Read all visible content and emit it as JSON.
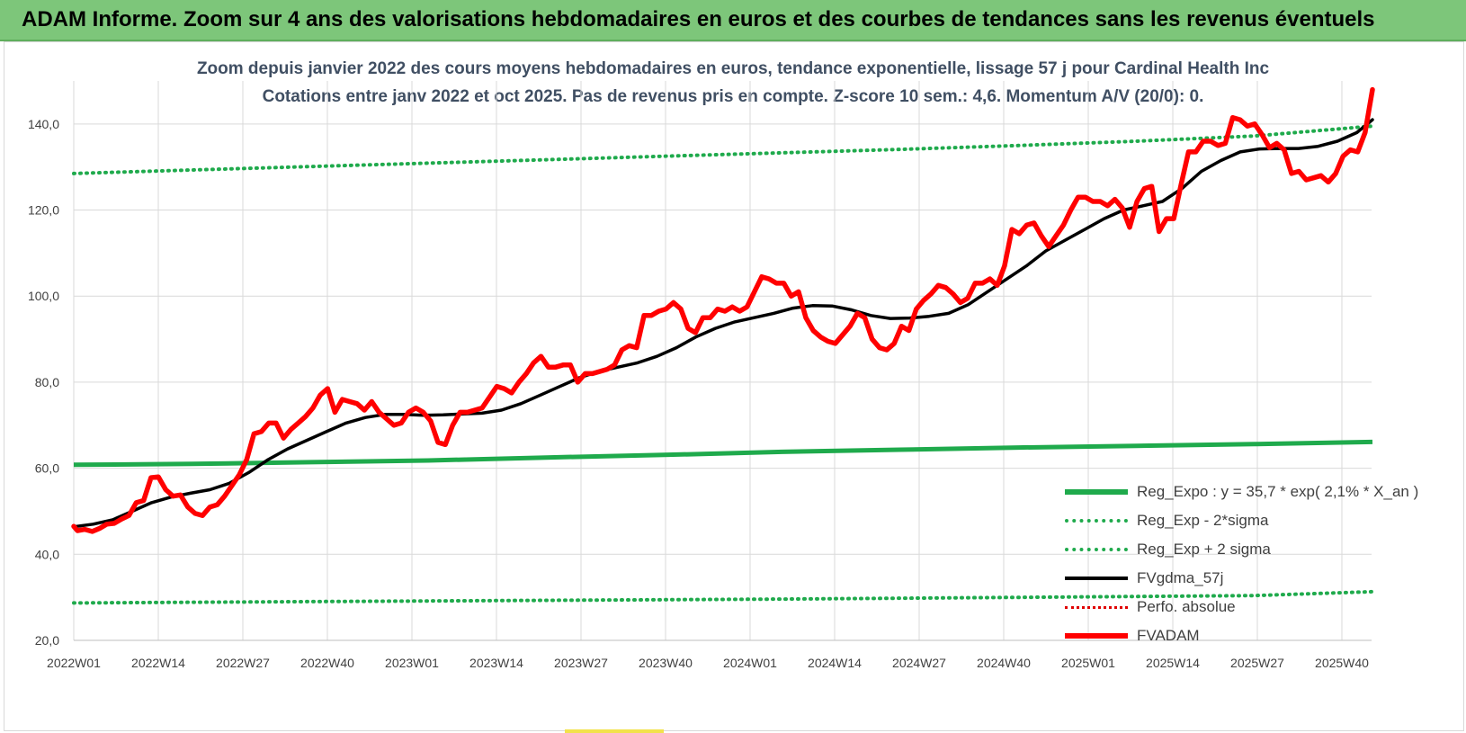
{
  "header": {
    "title": "ADAM Informe. Zoom sur 4 ans des valorisations hebdomadaires en euros et des courbes de tendances sans les revenus éventuels"
  },
  "chart_data": {
    "type": "line",
    "title": "Zoom depuis janvier 2022 des cours moyens hebdomadaires en euros, tendance exponentielle, lissage 57 j pour Cardinal Health Inc",
    "subtitle": "Cotations entre janv 2022 et oct 2025. Pas de revenus pris en compte. Z-score 10 sem.: 4,6. Momentum A/V (20/0): 0.",
    "xlabel": "",
    "ylabel": "",
    "ylim": [
      20,
      150
    ],
    "x_ticks": [
      "2022W01",
      "2022W14",
      "2022W27",
      "2022W40",
      "2023W01",
      "2023W14",
      "2023W27",
      "2023W40",
      "2024W01",
      "2024W14",
      "2024W27",
      "2024W40",
      "2025W01",
      "2025W14",
      "2025W27",
      "2025W40"
    ],
    "y_ticks": [
      "20,0",
      "40,0",
      "60,0",
      "80,0",
      "100,0",
      "120,0",
      "140,0"
    ],
    "week_range": [
      0,
      197
    ],
    "grid": true,
    "legend_position": "bottom-right",
    "series": [
      {
        "name": "Reg_Expo : y = 35,7 * exp( 2,1% * X_an )",
        "style": "solid",
        "color": "#1faa4c",
        "points": [
          [
            0,
            60.8
          ],
          [
            26,
            61.0
          ],
          [
            52,
            61.4
          ],
          [
            78,
            61.8
          ],
          [
            104,
            62.5
          ],
          [
            130,
            63.1
          ],
          [
            156,
            63.8
          ],
          [
            182,
            64.3
          ],
          [
            208,
            64.8
          ],
          [
            234,
            65.2
          ],
          [
            260,
            65.6
          ],
          [
            286,
            66.1
          ]
        ]
      },
      {
        "name": "Reg_Exp - 2*sigma",
        "style": "dotted",
        "color": "#1faa4c",
        "points": [
          [
            0,
            28.7
          ],
          [
            52,
            29.0
          ],
          [
            104,
            29.3
          ],
          [
            156,
            29.6
          ],
          [
            208,
            30.0
          ],
          [
            260,
            30.4
          ],
          [
            286,
            31.3
          ]
        ]
      },
      {
        "name": "Reg_Exp + 2 sigma",
        "style": "dotted",
        "color": "#1faa4c",
        "points": [
          [
            0,
            128.5
          ],
          [
            26,
            129.3
          ],
          [
            52,
            130.1
          ],
          [
            78,
            130.9
          ],
          [
            104,
            131.7
          ],
          [
            130,
            132.5
          ],
          [
            156,
            133.3
          ],
          [
            182,
            134.1
          ],
          [
            208,
            135.0
          ],
          [
            234,
            136.0
          ],
          [
            260,
            137.2
          ],
          [
            286,
            139.5
          ]
        ]
      },
      {
        "name": "FVgdma_57j",
        "style": "solid",
        "color": "#000000",
        "points": [
          [
            0,
            46.4
          ],
          [
            5,
            47.0
          ],
          [
            10,
            48.0
          ],
          [
            15,
            50.0
          ],
          [
            20,
            52.0
          ],
          [
            25,
            53.3
          ],
          [
            30,
            54.2
          ],
          [
            35,
            55.0
          ],
          [
            40,
            56.5
          ],
          [
            45,
            59.0
          ],
          [
            50,
            62.0
          ],
          [
            55,
            64.5
          ],
          [
            60,
            66.5
          ],
          [
            65,
            68.5
          ],
          [
            70,
            70.5
          ],
          [
            75,
            71.8
          ],
          [
            80,
            72.5
          ],
          [
            85,
            72.5
          ],
          [
            90,
            72.3
          ],
          [
            95,
            72.4
          ],
          [
            100,
            72.6
          ],
          [
            105,
            72.8
          ],
          [
            110,
            73.5
          ],
          [
            115,
            75.0
          ],
          [
            120,
            77.0
          ],
          [
            125,
            79.0
          ],
          [
            130,
            81.0
          ],
          [
            135,
            82.5
          ],
          [
            140,
            83.5
          ],
          [
            145,
            84.5
          ],
          [
            150,
            86.0
          ],
          [
            155,
            88.0
          ],
          [
            160,
            90.5
          ],
          [
            165,
            92.5
          ],
          [
            170,
            94.0
          ],
          [
            175,
            95.0
          ],
          [
            180,
            96.0
          ],
          [
            185,
            97.2
          ],
          [
            190,
            97.8
          ],
          [
            195,
            97.7
          ],
          [
            200,
            96.8
          ],
          [
            205,
            95.5
          ],
          [
            210,
            94.8
          ],
          [
            215,
            94.9
          ],
          [
            220,
            95.3
          ],
          [
            225,
            96.0
          ],
          [
            230,
            98.0
          ],
          [
            235,
            101.0
          ],
          [
            240,
            104.0
          ],
          [
            245,
            107.0
          ],
          [
            250,
            110.5
          ],
          [
            255,
            113.0
          ],
          [
            260,
            115.5
          ],
          [
            265,
            118.0
          ],
          [
            270,
            120.0
          ],
          [
            275,
            121.0
          ],
          [
            280,
            122.0
          ],
          [
            285,
            125.0
          ],
          [
            290,
            129.0
          ],
          [
            295,
            131.5
          ],
          [
            300,
            133.5
          ],
          [
            305,
            134.2
          ],
          [
            310,
            134.3
          ],
          [
            315,
            134.3
          ],
          [
            320,
            134.8
          ],
          [
            325,
            136.0
          ],
          [
            330,
            138.0
          ],
          [
            334,
            141.0
          ]
        ]
      },
      {
        "name": "Perfo. absolue",
        "style": "dotted",
        "color": "#e00000",
        "points": []
      },
      {
        "name": "FVADAM",
        "style": "solid",
        "color": "#ff0000",
        "points": [
          [
            0,
            46.5
          ],
          [
            1,
            45.5
          ],
          [
            3,
            45.8
          ],
          [
            5,
            45.3
          ],
          [
            7,
            46.0
          ],
          [
            9,
            47.0
          ],
          [
            11,
            47.2
          ],
          [
            13,
            48.2
          ],
          [
            15,
            49.0
          ],
          [
            17,
            52.0
          ],
          [
            19,
            52.5
          ],
          [
            21,
            57.8
          ],
          [
            23,
            58.0
          ],
          [
            25,
            55.0
          ],
          [
            27,
            53.5
          ],
          [
            29,
            53.8
          ],
          [
            31,
            51.0
          ],
          [
            33,
            49.5
          ],
          [
            35,
            49.0
          ],
          [
            37,
            51.0
          ],
          [
            39,
            51.5
          ],
          [
            41,
            53.5
          ],
          [
            43,
            56.0
          ],
          [
            45,
            58.5
          ],
          [
            47,
            62.0
          ],
          [
            49,
            68.0
          ],
          [
            51,
            68.5
          ],
          [
            53,
            70.5
          ],
          [
            55,
            70.5
          ],
          [
            57,
            67.0
          ],
          [
            59,
            69.0
          ],
          [
            61,
            70.5
          ],
          [
            63,
            72.0
          ],
          [
            65,
            74.0
          ],
          [
            67,
            77.0
          ],
          [
            69,
            78.5
          ],
          [
            71,
            73.0
          ],
          [
            73,
            76.0
          ],
          [
            75,
            75.5
          ],
          [
            77,
            75.0
          ],
          [
            79,
            73.5
          ],
          [
            81,
            75.5
          ],
          [
            83,
            73.0
          ],
          [
            85,
            71.5
          ],
          [
            87,
            70.0
          ],
          [
            89,
            70.5
          ],
          [
            91,
            73.0
          ],
          [
            93,
            74.0
          ],
          [
            95,
            73.0
          ],
          [
            97,
            71.0
          ],
          [
            99,
            66.0
          ],
          [
            101,
            65.5
          ],
          [
            103,
            70.0
          ],
          [
            105,
            73.0
          ],
          [
            107,
            73.0
          ],
          [
            109,
            73.5
          ],
          [
            111,
            74.0
          ],
          [
            113,
            76.5
          ],
          [
            115,
            79.0
          ],
          [
            117,
            78.5
          ],
          [
            119,
            77.5
          ],
          [
            121,
            80.0
          ],
          [
            123,
            82.0
          ],
          [
            125,
            84.5
          ],
          [
            127,
            86.0
          ],
          [
            129,
            83.5
          ],
          [
            131,
            83.5
          ],
          [
            133,
            84.0
          ],
          [
            135,
            84.0
          ],
          [
            137,
            80.0
          ],
          [
            139,
            82.0
          ],
          [
            141,
            82.0
          ],
          [
            143,
            82.5
          ],
          [
            145,
            83.0
          ],
          [
            147,
            84.0
          ],
          [
            149,
            87.5
          ],
          [
            151,
            88.5
          ],
          [
            153,
            88.0
          ],
          [
            155,
            95.5
          ],
          [
            157,
            95.5
          ],
          [
            159,
            96.5
          ],
          [
            161,
            97.0
          ],
          [
            163,
            98.5
          ],
          [
            165,
            97.0
          ],
          [
            167,
            92.5
          ],
          [
            169,
            91.5
          ],
          [
            171,
            95.0
          ],
          [
            173,
            95.0
          ],
          [
            175,
            97.0
          ],
          [
            177,
            96.5
          ],
          [
            179,
            97.5
          ],
          [
            181,
            96.5
          ],
          [
            183,
            97.5
          ],
          [
            185,
            101.0
          ],
          [
            187,
            104.5
          ],
          [
            189,
            104.0
          ],
          [
            191,
            103.0
          ],
          [
            193,
            103.0
          ],
          [
            195,
            100.0
          ],
          [
            197,
            101.0
          ],
          [
            199,
            95.0
          ],
          [
            201,
            92.0
          ],
          [
            203,
            90.5
          ],
          [
            205,
            89.5
          ],
          [
            207,
            89.0
          ],
          [
            209,
            91.0
          ],
          [
            211,
            93.0
          ],
          [
            213,
            96.0
          ],
          [
            215,
            95.0
          ],
          [
            217,
            90.0
          ],
          [
            219,
            88.0
          ],
          [
            221,
            87.5
          ],
          [
            223,
            89.0
          ],
          [
            225,
            93.0
          ],
          [
            227,
            92.0
          ],
          [
            229,
            97.0
          ],
          [
            231,
            99.0
          ],
          [
            233,
            100.5
          ],
          [
            235,
            102.5
          ],
          [
            237,
            102.0
          ],
          [
            239,
            100.5
          ],
          [
            241,
            98.5
          ],
          [
            243,
            99.5
          ],
          [
            245,
            103.0
          ],
          [
            247,
            103.0
          ],
          [
            249,
            104.0
          ],
          [
            251,
            102.5
          ],
          [
            253,
            107.0
          ],
          [
            255,
            115.5
          ],
          [
            257,
            114.5
          ],
          [
            259,
            116.5
          ],
          [
            261,
            117.0
          ],
          [
            263,
            114.0
          ],
          [
            265,
            111.5
          ],
          [
            267,
            114.0
          ],
          [
            269,
            116.5
          ],
          [
            271,
            120.0
          ],
          [
            273,
            123.0
          ],
          [
            275,
            123.0
          ],
          [
            277,
            122.0
          ],
          [
            279,
            122.0
          ],
          [
            281,
            121.0
          ],
          [
            283,
            122.5
          ],
          [
            285,
            120.5
          ],
          [
            287,
            116.0
          ],
          [
            289,
            122.0
          ],
          [
            291,
            125.0
          ],
          [
            293,
            125.5
          ],
          [
            295,
            115.0
          ],
          [
            297,
            118.0
          ],
          [
            299,
            118.0
          ],
          [
            301,
            126.0
          ],
          [
            303,
            133.5
          ],
          [
            305,
            133.5
          ],
          [
            307,
            136.0
          ],
          [
            309,
            136.0
          ],
          [
            311,
            135.0
          ],
          [
            313,
            135.5
          ],
          [
            315,
            141.5
          ],
          [
            317,
            141.0
          ],
          [
            319,
            139.5
          ],
          [
            321,
            140.0
          ],
          [
            323,
            137.5
          ],
          [
            325,
            134.5
          ],
          [
            327,
            135.5
          ],
          [
            329,
            134.0
          ],
          [
            331,
            128.5
          ],
          [
            333,
            129.0
          ],
          [
            335,
            127.0
          ],
          [
            337,
            127.5
          ],
          [
            339,
            128.0
          ],
          [
            341,
            126.5
          ],
          [
            343,
            128.5
          ],
          [
            345,
            132.5
          ],
          [
            347,
            134.0
          ],
          [
            349,
            133.5
          ],
          [
            351,
            138.0
          ],
          [
            353,
            148.0
          ]
        ]
      }
    ]
  }
}
